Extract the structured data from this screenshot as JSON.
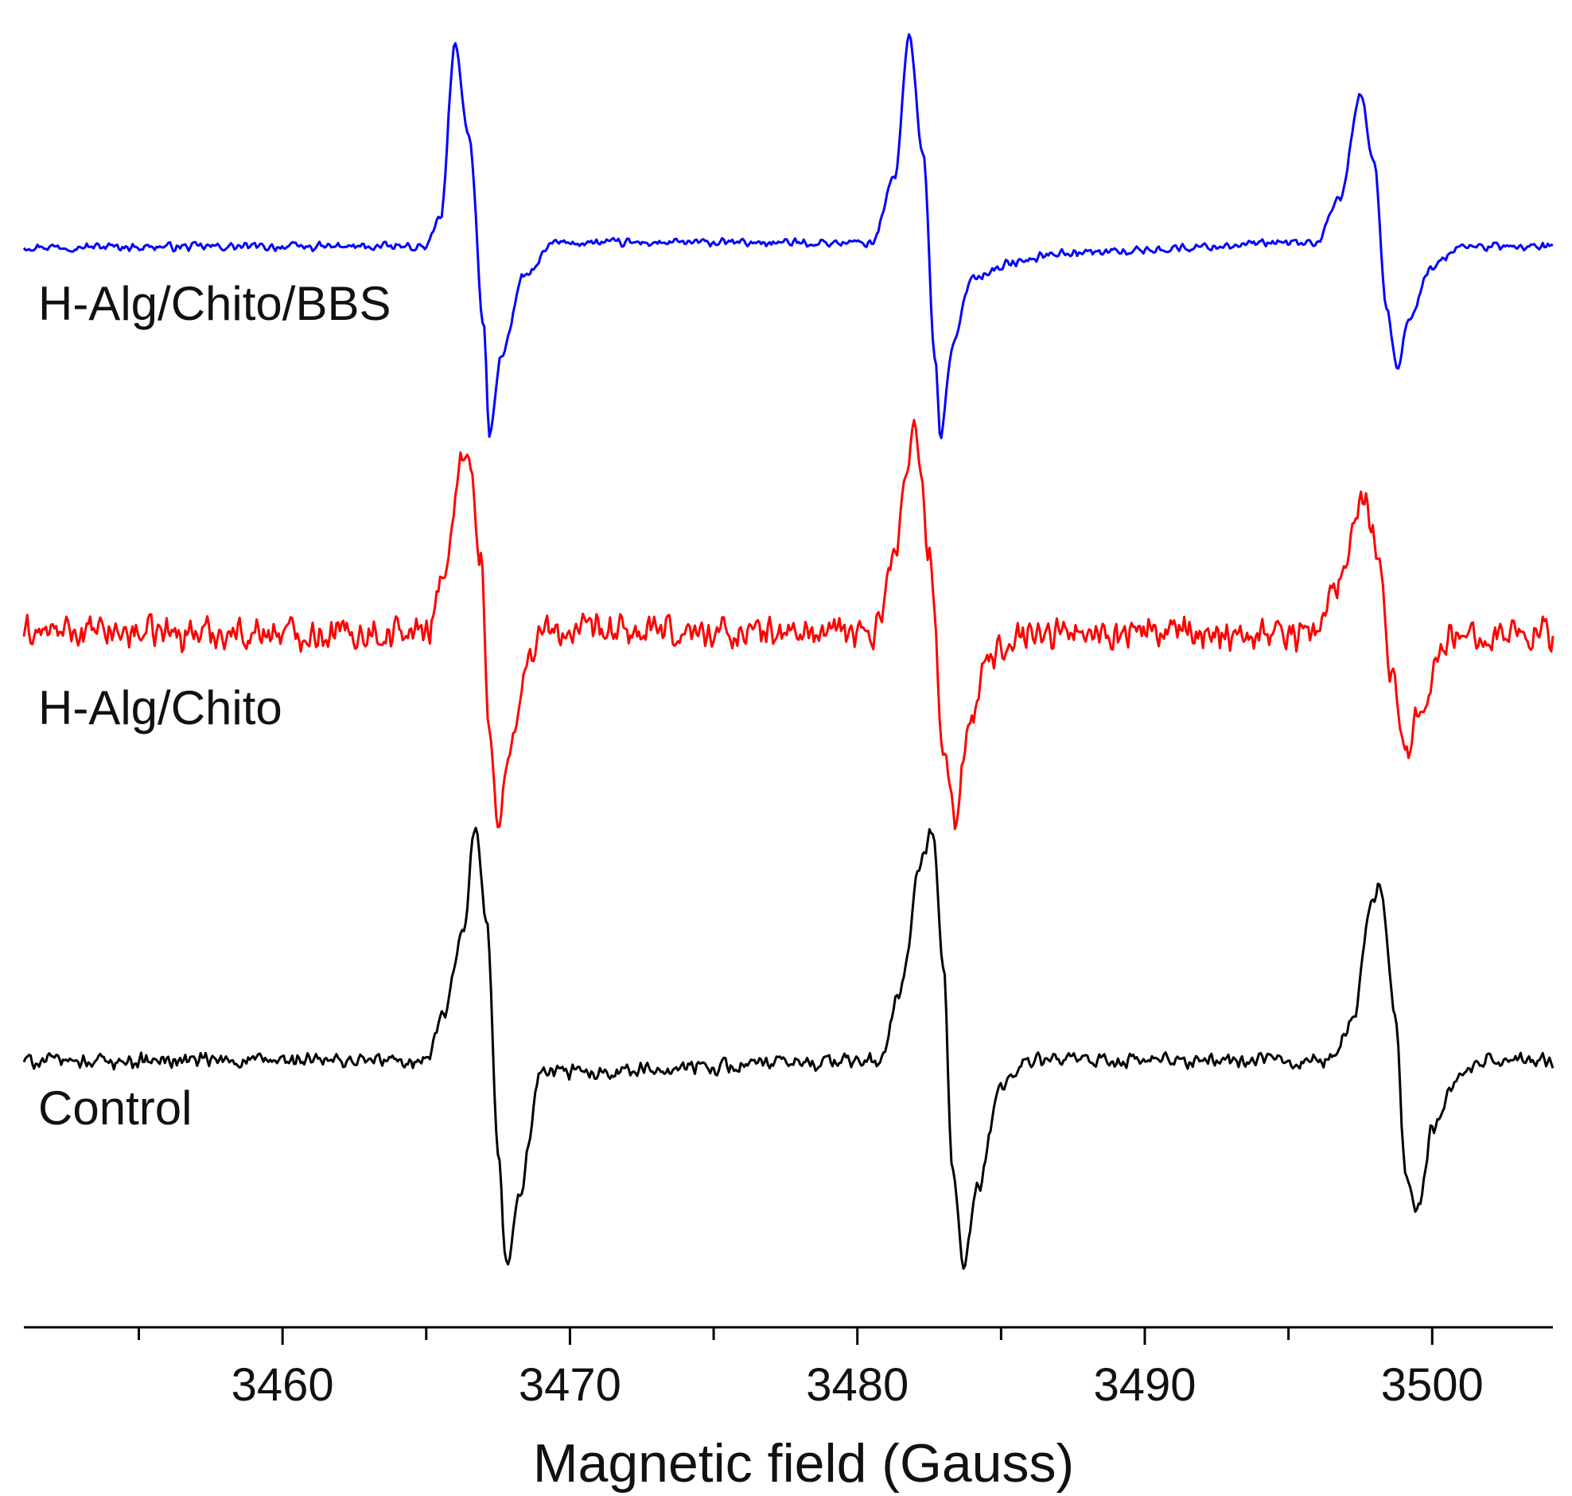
{
  "chart_data": {
    "type": "line",
    "title": "",
    "xlabel": "Magnetic field (Gauss)",
    "ylabel": "",
    "xlim": [
      3451,
      3504.2
    ],
    "x_ticks": [
      3460,
      3470,
      3480,
      3490,
      3500
    ],
    "x_tick_labels": [
      "3460",
      "3470",
      "3480",
      "3490",
      "3500"
    ],
    "x_minor_ticks": [
      3455,
      3465,
      3475,
      3485,
      3495
    ],
    "grid": false,
    "legend": "none (curves labeled inline on the left)",
    "y_axis_shown": false,
    "series": [
      {
        "name": "H-Alg/Chito/BBS",
        "color": "#0000ff",
        "baseline": 0,
        "noise_amplitude": 0.025,
        "points": [
          [
            3451,
            0.0
          ],
          [
            3465.0,
            0.0
          ],
          [
            3465.5,
            0.15
          ],
          [
            3466.0,
            1.0
          ],
          [
            3466.5,
            0.55
          ],
          [
            3467.0,
            -0.4
          ],
          [
            3467.2,
            -0.95
          ],
          [
            3467.6,
            -0.55
          ],
          [
            3468.4,
            -0.15
          ],
          [
            3469.5,
            0.02
          ],
          [
            3480.5,
            0.02
          ],
          [
            3481.3,
            0.35
          ],
          [
            3481.8,
            1.05
          ],
          [
            3482.3,
            0.45
          ],
          [
            3482.7,
            -0.55
          ],
          [
            3482.9,
            -0.96
          ],
          [
            3483.3,
            -0.5
          ],
          [
            3484.0,
            -0.15
          ],
          [
            3485.5,
            -0.08
          ],
          [
            3487.0,
            -0.03
          ],
          [
            3496.0,
            0.02
          ],
          [
            3496.8,
            0.25
          ],
          [
            3497.5,
            0.76
          ],
          [
            3498.0,
            0.4
          ],
          [
            3498.4,
            -0.3
          ],
          [
            3498.8,
            -0.6
          ],
          [
            3499.2,
            -0.35
          ],
          [
            3500.0,
            -0.1
          ],
          [
            3501.0,
            0.0
          ],
          [
            3504.2,
            0.0
          ]
        ]
      },
      {
        "name": "H-Alg/Chito",
        "color": "#ff0000",
        "baseline": 0,
        "noise_amplitude": 0.1,
        "points": [
          [
            3451,
            0.0
          ],
          [
            3465.0,
            0.0
          ],
          [
            3465.6,
            0.3
          ],
          [
            3466.4,
            0.95
          ],
          [
            3466.9,
            0.4
          ],
          [
            3467.2,
            -0.5
          ],
          [
            3467.5,
            -1.0
          ],
          [
            3467.9,
            -0.6
          ],
          [
            3468.4,
            -0.2
          ],
          [
            3469.0,
            0.0
          ],
          [
            3480.6,
            0.0
          ],
          [
            3481.2,
            0.35
          ],
          [
            3482.0,
            1.05
          ],
          [
            3482.5,
            0.4
          ],
          [
            3483.0,
            -0.55
          ],
          [
            3483.4,
            -0.95
          ],
          [
            3483.8,
            -0.55
          ],
          [
            3484.5,
            -0.15
          ],
          [
            3485.5,
            0.0
          ],
          [
            3496.0,
            0.0
          ],
          [
            3496.7,
            0.25
          ],
          [
            3497.6,
            0.7
          ],
          [
            3498.1,
            0.45
          ],
          [
            3498.6,
            -0.25
          ],
          [
            3499.1,
            -0.6
          ],
          [
            3499.6,
            -0.35
          ],
          [
            3500.5,
            -0.05
          ],
          [
            3501.5,
            0.0
          ],
          [
            3504.2,
            0.0
          ]
        ]
      },
      {
        "name": "Control",
        "color": "#000000",
        "baseline": 0,
        "noise_amplitude": 0.04,
        "points": [
          [
            3451,
            0.0
          ],
          [
            3465.0,
            0.0
          ],
          [
            3465.6,
            0.2
          ],
          [
            3466.3,
            0.55
          ],
          [
            3466.7,
            1.0
          ],
          [
            3467.1,
            0.6
          ],
          [
            3467.5,
            -0.4
          ],
          [
            3467.8,
            -0.9
          ],
          [
            3468.2,
            -0.6
          ],
          [
            3469.0,
            -0.05
          ],
          [
            3480.8,
            0.0
          ],
          [
            3481.5,
            0.3
          ],
          [
            3482.2,
            0.85
          ],
          [
            3482.6,
            1.0
          ],
          [
            3483.0,
            0.4
          ],
          [
            3483.3,
            -0.45
          ],
          [
            3483.7,
            -0.9
          ],
          [
            3484.2,
            -0.55
          ],
          [
            3485.0,
            -0.1
          ],
          [
            3486.0,
            0.0
          ],
          [
            3496.5,
            0.0
          ],
          [
            3497.3,
            0.2
          ],
          [
            3497.8,
            0.65
          ],
          [
            3498.2,
            0.75
          ],
          [
            3498.7,
            0.2
          ],
          [
            3499.1,
            -0.5
          ],
          [
            3499.5,
            -0.65
          ],
          [
            3500.0,
            -0.3
          ],
          [
            3501.0,
            -0.05
          ],
          [
            3502.0,
            0.0
          ],
          [
            3504.2,
            0.0
          ]
        ]
      }
    ]
  }
}
